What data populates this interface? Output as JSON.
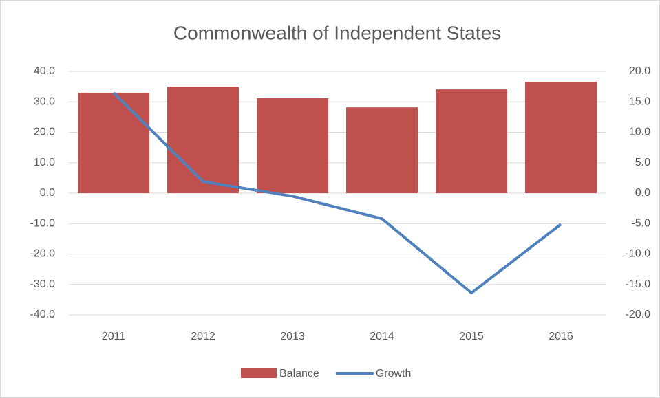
{
  "chart_data": {
    "type": "bar_line",
    "title": "Commonwealth of Independent States",
    "categories": [
      "2011",
      "2012",
      "2013",
      "2014",
      "2015",
      "2016"
    ],
    "series": [
      {
        "name": "Balance",
        "type": "bar",
        "color": "#c0504d",
        "values": [
          33.0,
          35.0,
          31.2,
          28.2,
          34.1,
          36.6
        ]
      },
      {
        "name": "Growth",
        "type": "line",
        "axis": "y2",
        "color": "#4f81bd",
        "values": [
          16.5,
          1.9,
          -0.5,
          -4.2,
          -16.4,
          -5.1
        ]
      }
    ],
    "ylim": [
      -40,
      40
    ],
    "yticks": [
      {
        "value": 40,
        "label": "40.0"
      },
      {
        "value": 30,
        "label": "30.0"
      },
      {
        "value": 20,
        "label": "20.0"
      },
      {
        "value": 10,
        "label": "10.0"
      },
      {
        "value": 0,
        "label": "0.0"
      },
      {
        "value": -10,
        "label": "-10.0"
      },
      {
        "value": -20,
        "label": "-20.0"
      },
      {
        "value": -30,
        "label": "-30.0"
      },
      {
        "value": -40,
        "label": "-40.0"
      }
    ],
    "y2lim": [
      -20,
      20
    ],
    "y2ticks": [
      {
        "value": 20,
        "label": "20.0"
      },
      {
        "value": 15,
        "label": "15.0"
      },
      {
        "value": 10,
        "label": "10.0"
      },
      {
        "value": 5,
        "label": "5.0"
      },
      {
        "value": 0,
        "label": "0.0"
      },
      {
        "value": -5,
        "label": "-5.0"
      },
      {
        "value": -10,
        "label": "-10.0"
      },
      {
        "value": -15,
        "label": "-15.0"
      },
      {
        "value": -20,
        "label": "-20.0"
      }
    ],
    "grid": true,
    "legend": "bottom"
  }
}
